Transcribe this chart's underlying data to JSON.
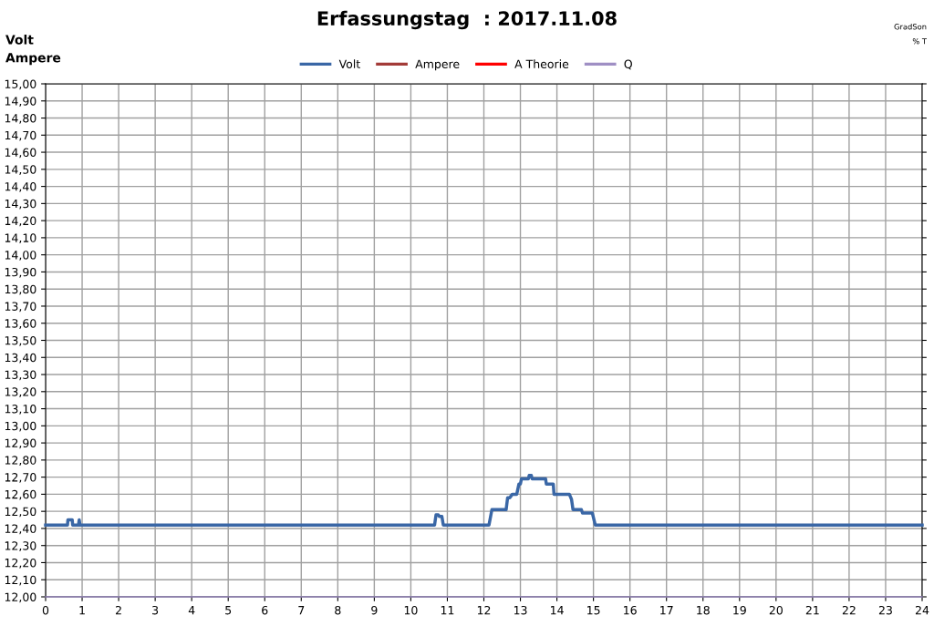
{
  "chart_data": {
    "type": "line",
    "title": "Erfassungstag  : 2017.11.08",
    "ylabel": "Volt\nAmpere",
    "annotations": [
      "GradSon",
      "% T"
    ],
    "xlim": [
      0,
      24
    ],
    "xticks": [
      0,
      1,
      2,
      3,
      4,
      5,
      6,
      7,
      8,
      9,
      10,
      11,
      12,
      13,
      14,
      15,
      16,
      17,
      18,
      19,
      20,
      21,
      22,
      23,
      24
    ],
    "ylim": [
      12.0,
      15.0
    ],
    "yticks": [
      {
        "value": 12.0,
        "label": "12,00"
      },
      {
        "value": 12.1,
        "label": "12,10"
      },
      {
        "value": 12.2,
        "label": "12,20"
      },
      {
        "value": 12.3,
        "label": "12,30"
      },
      {
        "value": 12.4,
        "label": "12,40"
      },
      {
        "value": 12.5,
        "label": "12,50"
      },
      {
        "value": 12.6,
        "label": "12,60"
      },
      {
        "value": 12.7,
        "label": "12,70"
      },
      {
        "value": 12.8,
        "label": "12,80"
      },
      {
        "value": 12.9,
        "label": "12,90"
      },
      {
        "value": 13.0,
        "label": "13,00"
      },
      {
        "value": 13.1,
        "label": "13,10"
      },
      {
        "value": 13.2,
        "label": "13,20"
      },
      {
        "value": 13.3,
        "label": "13,30"
      },
      {
        "value": 13.4,
        "label": "13,40"
      },
      {
        "value": 13.5,
        "label": "13,50"
      },
      {
        "value": 13.6,
        "label": "13,60"
      },
      {
        "value": 13.7,
        "label": "13,70"
      },
      {
        "value": 13.8,
        "label": "13,80"
      },
      {
        "value": 13.9,
        "label": "13,90"
      },
      {
        "value": 14.0,
        "label": "14,00"
      },
      {
        "value": 14.1,
        "label": "14,10"
      },
      {
        "value": 14.2,
        "label": "14,20"
      },
      {
        "value": 14.3,
        "label": "14,30"
      },
      {
        "value": 14.4,
        "label": "14,40"
      },
      {
        "value": 14.5,
        "label": "14,50"
      },
      {
        "value": 14.6,
        "label": "14,60"
      },
      {
        "value": 14.7,
        "label": "14,70"
      },
      {
        "value": 14.8,
        "label": "14,80"
      },
      {
        "value": 14.9,
        "label": "14,90"
      },
      {
        "value": 15.0,
        "label": "15,00"
      }
    ],
    "grid": true,
    "legend": "top",
    "marker": "none",
    "line_style": "solid",
    "series": [
      {
        "name": "Volt",
        "color": "#3a67a6",
        "x": [
          0,
          0.6,
          0.61,
          0.73,
          0.74,
          0.9,
          0.92,
          0.94,
          10.65,
          10.69,
          10.75,
          10.78,
          10.85,
          10.89,
          12.14,
          12.22,
          12.61,
          12.65,
          12.71,
          12.78,
          12.9,
          12.96,
          13.0,
          13.03,
          13.22,
          13.24,
          13.3,
          13.32,
          13.69,
          13.71,
          13.9,
          13.92,
          14.34,
          14.4,
          14.44,
          14.67,
          14.7,
          14.97,
          15.05,
          24
        ],
        "values": [
          12.42,
          12.42,
          12.45,
          12.45,
          12.42,
          12.42,
          12.45,
          12.42,
          12.42,
          12.48,
          12.48,
          12.47,
          12.47,
          12.42,
          12.42,
          12.51,
          12.51,
          12.58,
          12.58,
          12.6,
          12.6,
          12.66,
          12.66,
          12.69,
          12.69,
          12.71,
          12.71,
          12.69,
          12.69,
          12.66,
          12.66,
          12.6,
          12.6,
          12.57,
          12.51,
          12.51,
          12.49,
          12.49,
          12.42,
          12.42
        ]
      },
      {
        "name": "Ampere",
        "color": "#a33b38"
      },
      {
        "name": "A Theorie",
        "color": "#ff0000"
      },
      {
        "name": "Q",
        "color": "#9f8fc4",
        "x": [
          0,
          24
        ],
        "values": [
          12.0,
          12.0
        ]
      }
    ]
  }
}
